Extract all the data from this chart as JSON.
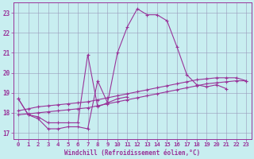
{
  "title": "",
  "xlabel": "Windchill (Refroidissement éolien,°C)",
  "ylabel": "",
  "background_color": "#c8eef0",
  "line_color": "#993399",
  "grid_color": "#9999bb",
  "xlim": [
    -0.5,
    23.5
  ],
  "ylim": [
    16.7,
    23.5
  ],
  "yticks": [
    17,
    18,
    19,
    20,
    21,
    22,
    23
  ],
  "xticks": [
    0,
    1,
    2,
    3,
    4,
    5,
    6,
    7,
    8,
    9,
    10,
    11,
    12,
    13,
    14,
    15,
    16,
    17,
    18,
    19,
    20,
    21,
    22,
    23
  ],
  "series": [
    {
      "x": [
        0,
        1,
        2,
        3,
        4,
        5,
        6,
        7,
        8,
        9,
        10,
        11,
        12,
        13,
        14,
        15,
        16,
        17,
        18,
        19,
        20,
        21
      ],
      "y": [
        18.7,
        17.9,
        17.7,
        17.2,
        17.2,
        17.3,
        17.3,
        17.2,
        19.6,
        18.5,
        21.0,
        22.3,
        23.2,
        22.9,
        22.9,
        22.6,
        21.3,
        19.9,
        19.4,
        19.3,
        19.4,
        19.2
      ]
    },
    {
      "x": [
        0,
        1,
        2,
        3,
        4,
        5,
        6,
        7,
        8,
        9,
        10,
        11
      ],
      "y": [
        18.7,
        17.9,
        17.8,
        17.5,
        17.5,
        17.5,
        17.5,
        20.9,
        18.3,
        18.5,
        18.7,
        18.8
      ]
    },
    {
      "x": [
        0,
        1,
        2,
        3,
        4,
        5,
        6,
        7,
        8,
        9,
        10,
        11,
        12,
        13,
        14,
        15,
        16,
        17,
        18,
        19,
        20,
        21,
        22,
        23
      ],
      "y": [
        17.9,
        17.95,
        18.0,
        18.05,
        18.1,
        18.15,
        18.2,
        18.25,
        18.35,
        18.45,
        18.55,
        18.65,
        18.75,
        18.85,
        18.95,
        19.05,
        19.15,
        19.25,
        19.35,
        19.45,
        19.5,
        19.55,
        19.6,
        19.6
      ]
    },
    {
      "x": [
        0,
        1,
        2,
        3,
        4,
        5,
        6,
        7,
        8,
        9,
        10,
        11,
        12,
        13,
        14,
        15,
        16,
        17,
        18,
        19,
        20,
        21,
        22,
        23
      ],
      "y": [
        18.1,
        18.2,
        18.3,
        18.35,
        18.4,
        18.45,
        18.5,
        18.55,
        18.65,
        18.75,
        18.85,
        18.95,
        19.05,
        19.15,
        19.25,
        19.35,
        19.45,
        19.55,
        19.65,
        19.7,
        19.75,
        19.75,
        19.75,
        19.6
      ]
    }
  ]
}
